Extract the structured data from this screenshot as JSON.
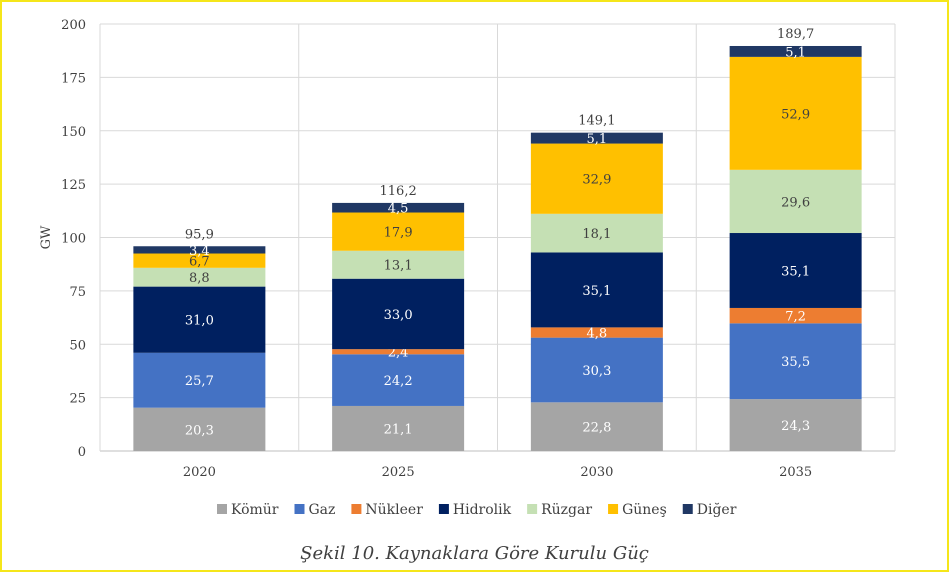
{
  "chart_data": {
    "type": "bar",
    "stacked": true,
    "categories": [
      "2020",
      "2025",
      "2030",
      "2035"
    ],
    "ylabel": "GW",
    "ylim": [
      0,
      200
    ],
    "yticks": [
      0,
      25,
      50,
      75,
      100,
      125,
      150,
      175,
      200
    ],
    "grid": true,
    "legend_position": "bottom",
    "series": [
      {
        "name": "Kömür",
        "color": "#a5a5a5",
        "values": [
          20.3,
          21.1,
          22.8,
          24.3
        ],
        "labels": [
          "20,3",
          "21,1",
          "22,8",
          "24,3"
        ],
        "label_color": "#ffffff"
      },
      {
        "name": "Gaz",
        "color": "#4472c4",
        "values": [
          25.7,
          24.2,
          30.3,
          35.5
        ],
        "labels": [
          "25,7",
          "24,2",
          "30,3",
          "35,5"
        ],
        "label_color": "#ffffff"
      },
      {
        "name": "Nükleer",
        "color": "#ed7d31",
        "values": [
          0,
          2.4,
          4.8,
          7.2
        ],
        "labels": [
          "",
          "2,4",
          "4,8",
          "7,2"
        ],
        "label_color": "#ffffff"
      },
      {
        "name": "Hidrolik",
        "color": "#002060",
        "values": [
          31.0,
          33.0,
          35.1,
          35.1
        ],
        "labels": [
          "31,0",
          "33,0",
          "35,1",
          "35,1"
        ],
        "label_color": "#ffffff"
      },
      {
        "name": "Rüzgar",
        "color": "#c5e0b4",
        "values": [
          8.8,
          13.1,
          18.1,
          29.6
        ],
        "labels": [
          "8,8",
          "13,1",
          "18,1",
          "29,6"
        ],
        "label_color": "#404040"
      },
      {
        "name": "Güneş",
        "color": "#ffc000",
        "values": [
          6.7,
          17.9,
          32.9,
          52.9
        ],
        "labels": [
          "6,7",
          "17,9",
          "32,9",
          "52,9"
        ],
        "label_color": "#404040"
      },
      {
        "name": "Diğer",
        "color": "#203864",
        "values": [
          3.4,
          4.5,
          5.1,
          5.1
        ],
        "labels": [
          "3,4",
          "4,5",
          "5,1",
          "5,1"
        ],
        "label_color": "#ffffff"
      }
    ],
    "totals": [
      95.9,
      116.2,
      149.1,
      189.7
    ],
    "total_labels": [
      "95,9",
      "116,2",
      "149,1",
      "189,7"
    ]
  },
  "caption": "Şekil 10. Kaynaklara Göre Kurulu Güç",
  "frame_color": "#f5e61a"
}
